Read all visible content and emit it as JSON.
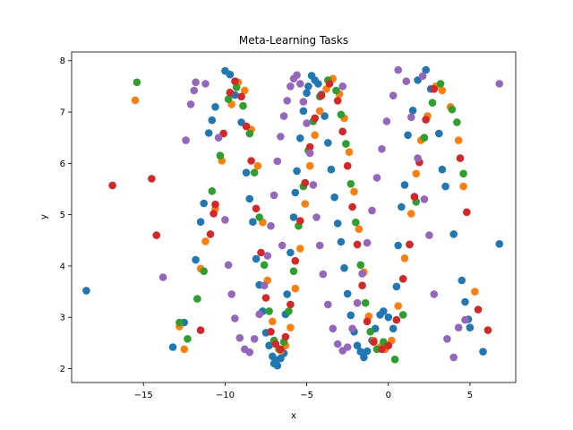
{
  "chart_data": {
    "type": "scatter",
    "title": "Meta-Learning Tasks",
    "xlabel": "x",
    "ylabel": "y",
    "xlim": [
      -19.4,
      7.8
    ],
    "ylim": [
      1.73,
      8.17
    ],
    "xticks": [
      -15,
      -10,
      -5,
      0,
      5
    ],
    "xtick_labels": [
      "−15",
      "−10",
      "−5",
      "0",
      "5"
    ],
    "yticks": [
      2,
      3,
      4,
      5,
      6,
      7,
      8
    ],
    "ytick_labels": [
      "2",
      "3",
      "4",
      "5",
      "6",
      "7",
      "8"
    ],
    "grid": false,
    "legend": "none",
    "series": [
      {
        "color": "#1f77b4",
        "points": [
          [
            -18.5,
            3.52
          ],
          [
            -13.2,
            2.42
          ],
          [
            -12.5,
            2.9
          ],
          [
            -11.8,
            4.12
          ],
          [
            -11.5,
            4.86
          ],
          [
            -11.3,
            5.22
          ],
          [
            -11.0,
            6.59
          ],
          [
            -10.8,
            6.84
          ],
          [
            -10.6,
            7.1
          ],
          [
            -10.0,
            7.8
          ],
          [
            -9.7,
            7.73
          ],
          [
            -9.4,
            7.33
          ],
          [
            -9.0,
            6.8
          ],
          [
            -8.7,
            5.82
          ],
          [
            -8.5,
            5.31
          ],
          [
            -8.3,
            4.86
          ],
          [
            -8.1,
            4.14
          ],
          [
            -7.9,
            3.63
          ],
          [
            -7.7,
            3.12
          ],
          [
            -7.5,
            2.7
          ],
          [
            -7.3,
            2.45
          ],
          [
            -7.1,
            2.24
          ],
          [
            -7.0,
            2.1
          ],
          [
            -6.9,
            2.17
          ],
          [
            -6.8,
            2.06
          ],
          [
            -6.6,
            2.2
          ],
          [
            -6.4,
            2.3
          ],
          [
            -6.3,
            3.06
          ],
          [
            -6.2,
            3.45
          ],
          [
            -6.0,
            4.26
          ],
          [
            -5.8,
            4.95
          ],
          [
            -5.7,
            5.43
          ],
          [
            -5.6,
            5.85
          ],
          [
            -5.4,
            6.49
          ],
          [
            -5.2,
            7.02
          ],
          [
            -5.0,
            7.37
          ],
          [
            -4.9,
            7.5
          ],
          [
            -4.7,
            7.71
          ],
          [
            -4.5,
            7.62
          ],
          [
            -4.3,
            7.55
          ],
          [
            -4.1,
            7.34
          ],
          [
            -3.9,
            6.92
          ],
          [
            -3.7,
            6.4
          ],
          [
            -3.5,
            5.88
          ],
          [
            -3.3,
            5.34
          ],
          [
            -3.1,
            4.83
          ],
          [
            -2.9,
            4.47
          ],
          [
            -2.7,
            3.96
          ],
          [
            -2.5,
            3.46
          ],
          [
            -2.3,
            3.04
          ],
          [
            -2.1,
            2.72
          ],
          [
            -1.9,
            2.45
          ],
          [
            -1.7,
            2.33
          ],
          [
            -1.5,
            2.22
          ],
          [
            -1.3,
            2.34
          ],
          [
            -1.0,
            2.55
          ],
          [
            -0.8,
            2.78
          ],
          [
            -0.5,
            3.05
          ],
          [
            -0.3,
            3.12
          ],
          [
            0.0,
            3.0
          ],
          [
            0.3,
            2.78
          ],
          [
            0.5,
            3.6
          ],
          [
            0.6,
            4.4
          ],
          [
            0.8,
            5.15
          ],
          [
            1.0,
            5.58
          ],
          [
            1.2,
            6.55
          ],
          [
            1.5,
            7.03
          ],
          [
            1.8,
            7.62
          ],
          [
            2.3,
            7.82
          ],
          [
            2.6,
            7.45
          ],
          [
            3.1,
            6.58
          ],
          [
            3.3,
            5.88
          ],
          [
            3.5,
            5.55
          ],
          [
            4.0,
            4.62
          ],
          [
            4.5,
            3.72
          ],
          [
            4.7,
            3.3
          ],
          [
            4.9,
            2.96
          ],
          [
            5.0,
            2.8
          ],
          [
            5.8,
            2.33
          ],
          [
            6.8,
            4.43
          ]
        ]
      },
      {
        "color": "#ff7f0e",
        "points": [
          [
            -15.5,
            7.23
          ],
          [
            -12.5,
            2.38
          ],
          [
            -12.8,
            2.82
          ],
          [
            -11.5,
            3.95
          ],
          [
            -11.2,
            4.48
          ],
          [
            -10.6,
            5.12
          ],
          [
            -10.2,
            6.05
          ],
          [
            -9.6,
            7.15
          ],
          [
            -9.2,
            7.58
          ],
          [
            -8.8,
            7.42
          ],
          [
            -8.4,
            6.66
          ],
          [
            -8.0,
            5.95
          ],
          [
            -7.7,
            4.85
          ],
          [
            -7.4,
            3.72
          ],
          [
            -7.1,
            2.92
          ],
          [
            -6.9,
            2.48
          ],
          [
            -6.6,
            2.35
          ],
          [
            -6.3,
            2.45
          ],
          [
            -6.0,
            2.8
          ],
          [
            -5.7,
            3.56
          ],
          [
            -5.4,
            4.34
          ],
          [
            -5.1,
            5.21
          ],
          [
            -4.8,
            5.95
          ],
          [
            -4.5,
            6.55
          ],
          [
            -4.2,
            7.02
          ],
          [
            -3.8,
            7.45
          ],
          [
            -3.4,
            7.65
          ],
          [
            -3.0,
            7.35
          ],
          [
            -2.7,
            6.88
          ],
          [
            -2.4,
            6.22
          ],
          [
            -2.1,
            5.45
          ],
          [
            -1.8,
            4.72
          ],
          [
            -1.5,
            3.88
          ],
          [
            -1.2,
            3.02
          ],
          [
            -0.9,
            2.55
          ],
          [
            -0.5,
            2.42
          ],
          [
            -0.2,
            2.38
          ],
          [
            0.2,
            2.55
          ],
          [
            0.6,
            3.22
          ],
          [
            1.0,
            4.15
          ],
          [
            1.4,
            5.02
          ],
          [
            1.7,
            5.8
          ],
          [
            2.0,
            6.45
          ],
          [
            2.4,
            6.92
          ],
          [
            2.9,
            7.5
          ],
          [
            3.3,
            7.42
          ],
          [
            3.8,
            7.1
          ],
          [
            4.3,
            6.45
          ],
          [
            4.6,
            5.55
          ],
          [
            5.3,
            3.5
          ]
        ]
      },
      {
        "color": "#2ca02c",
        "points": [
          [
            -15.4,
            7.58
          ],
          [
            -12.8,
            2.9
          ],
          [
            -12.3,
            2.58
          ],
          [
            -11.7,
            3.36
          ],
          [
            -11.3,
            3.9
          ],
          [
            -10.8,
            5.46
          ],
          [
            -10.3,
            6.15
          ],
          [
            -9.8,
            7.25
          ],
          [
            -9.3,
            7.48
          ],
          [
            -8.9,
            7.12
          ],
          [
            -8.5,
            6.58
          ],
          [
            -8.2,
            5.82
          ],
          [
            -7.9,
            4.95
          ],
          [
            -7.6,
            4.02
          ],
          [
            -7.3,
            3.12
          ],
          [
            -7.0,
            2.55
          ],
          [
            -6.7,
            2.38
          ],
          [
            -6.4,
            2.52
          ],
          [
            -6.1,
            3.12
          ],
          [
            -5.8,
            3.9
          ],
          [
            -5.5,
            4.78
          ],
          [
            -5.2,
            5.55
          ],
          [
            -4.9,
            6.25
          ],
          [
            -4.6,
            6.82
          ],
          [
            -4.2,
            7.3
          ],
          [
            -3.7,
            7.62
          ],
          [
            -3.2,
            7.42
          ],
          [
            -2.9,
            6.95
          ],
          [
            -2.6,
            6.38
          ],
          [
            -2.3,
            5.6
          ],
          [
            -2.0,
            4.85
          ],
          [
            -1.7,
            4.02
          ],
          [
            -1.4,
            3.28
          ],
          [
            -1.1,
            2.72
          ],
          [
            -0.7,
            2.38
          ],
          [
            -0.3,
            2.52
          ],
          [
            0.4,
            2.18
          ],
          [
            0.9,
            3.05
          ],
          [
            1.3,
            4.42
          ],
          [
            1.7,
            5.25
          ],
          [
            2.2,
            6.5
          ],
          [
            2.7,
            7.18
          ],
          [
            3.2,
            7.55
          ],
          [
            3.9,
            7.05
          ],
          [
            4.2,
            6.8
          ],
          [
            4.6,
            5.8
          ]
        ]
      },
      {
        "color": "#d62728",
        "points": [
          [
            -16.9,
            5.57
          ],
          [
            -14.5,
            5.7
          ],
          [
            -14.2,
            4.6
          ],
          [
            -11.5,
            2.75
          ],
          [
            -10.9,
            4.62
          ],
          [
            -10.7,
            5.02
          ],
          [
            -10.6,
            5.2
          ],
          [
            -10.1,
            6.58
          ],
          [
            -9.7,
            7.38
          ],
          [
            -9.4,
            7.6
          ],
          [
            -9.0,
            7.3
          ],
          [
            -8.7,
            6.72
          ],
          [
            -8.4,
            6.05
          ],
          [
            -8.1,
            5.12
          ],
          [
            -7.8,
            4.26
          ],
          [
            -7.5,
            3.38
          ],
          [
            -7.2,
            2.72
          ],
          [
            -6.9,
            2.48
          ],
          [
            -6.6,
            2.38
          ],
          [
            -6.3,
            2.62
          ],
          [
            -6.0,
            3.25
          ],
          [
            -5.7,
            4.1
          ],
          [
            -5.4,
            4.88
          ],
          [
            -5.1,
            5.62
          ],
          [
            -4.8,
            6.32
          ],
          [
            -4.5,
            6.88
          ],
          [
            -4.1,
            7.32
          ],
          [
            -3.6,
            7.55
          ],
          [
            -3.1,
            7.22
          ],
          [
            -2.8,
            6.62
          ],
          [
            -2.5,
            5.95
          ],
          [
            -2.2,
            5.15
          ],
          [
            -1.9,
            4.42
          ],
          [
            -1.6,
            3.62
          ],
          [
            -1.3,
            2.92
          ],
          [
            -0.9,
            2.52
          ],
          [
            -0.4,
            2.38
          ],
          [
            0.0,
            2.45
          ],
          [
            0.5,
            2.95
          ],
          [
            0.9,
            3.75
          ],
          [
            1.3,
            4.42
          ],
          [
            1.6,
            5.35
          ],
          [
            1.9,
            6.02
          ],
          [
            2.3,
            6.85
          ],
          [
            2.8,
            7.45
          ],
          [
            4.4,
            6.1
          ],
          [
            4.8,
            5.05
          ],
          [
            5.5,
            3.15
          ],
          [
            6.1,
            2.75
          ]
        ]
      },
      {
        "color": "#9467bd",
        "points": [
          [
            -13.8,
            3.78
          ],
          [
            -12.4,
            6.45
          ],
          [
            -12.1,
            7.15
          ],
          [
            -11.9,
            7.42
          ],
          [
            -11.8,
            7.58
          ],
          [
            -11.2,
            7.55
          ],
          [
            -10.4,
            6.5
          ],
          [
            -10.0,
            4.9
          ],
          [
            -9.8,
            4.02
          ],
          [
            -9.6,
            3.45
          ],
          [
            -9.4,
            2.98
          ],
          [
            -9.1,
            2.6
          ],
          [
            -8.8,
            2.38
          ],
          [
            -8.5,
            2.32
          ],
          [
            -8.2,
            2.58
          ],
          [
            -7.9,
            3.06
          ],
          [
            -7.6,
            3.62
          ],
          [
            -7.4,
            4.2
          ],
          [
            -7.2,
            4.78
          ],
          [
            -7.0,
            5.38
          ],
          [
            -6.8,
            6.04
          ],
          [
            -6.6,
            6.52
          ],
          [
            -6.4,
            6.92
          ],
          [
            -6.2,
            7.22
          ],
          [
            -6.0,
            7.5
          ],
          [
            -5.8,
            7.65
          ],
          [
            -5.6,
            7.72
          ],
          [
            -5.4,
            7.55
          ],
          [
            -5.2,
            7.2
          ],
          [
            -5.0,
            6.78
          ],
          [
            -4.8,
            6.2
          ],
          [
            -4.6,
            5.58
          ],
          [
            -4.4,
            4.95
          ],
          [
            -4.2,
            4.4
          ],
          [
            -4.0,
            3.84
          ],
          [
            -3.7,
            3.25
          ],
          [
            -3.4,
            2.78
          ],
          [
            -3.1,
            2.48
          ],
          [
            -2.8,
            2.35
          ],
          [
            -2.5,
            2.42
          ],
          [
            -2.2,
            2.78
          ],
          [
            -1.9,
            3.28
          ],
          [
            -1.6,
            3.85
          ],
          [
            -1.3,
            4.45
          ],
          [
            -1.0,
            5.08
          ],
          [
            -0.7,
            5.72
          ],
          [
            -0.4,
            6.28
          ],
          [
            -0.1,
            6.82
          ],
          [
            0.3,
            7.32
          ],
          [
            0.6,
            7.82
          ],
          [
            1.1,
            7.6
          ],
          [
            1.4,
            6.9
          ],
          [
            1.8,
            6.1
          ],
          [
            2.2,
            5.3
          ],
          [
            2.5,
            4.6
          ],
          [
            2.8,
            3.45
          ],
          [
            3.6,
            2.58
          ],
          [
            4.0,
            2.22
          ],
          [
            4.3,
            2.8
          ],
          [
            4.7,
            2.95
          ],
          [
            6.8,
            7.55
          ],
          [
            2.1,
            7.7
          ],
          [
            -2.8,
            7.5
          ],
          [
            -6.5,
            4.4
          ]
        ]
      }
    ]
  }
}
